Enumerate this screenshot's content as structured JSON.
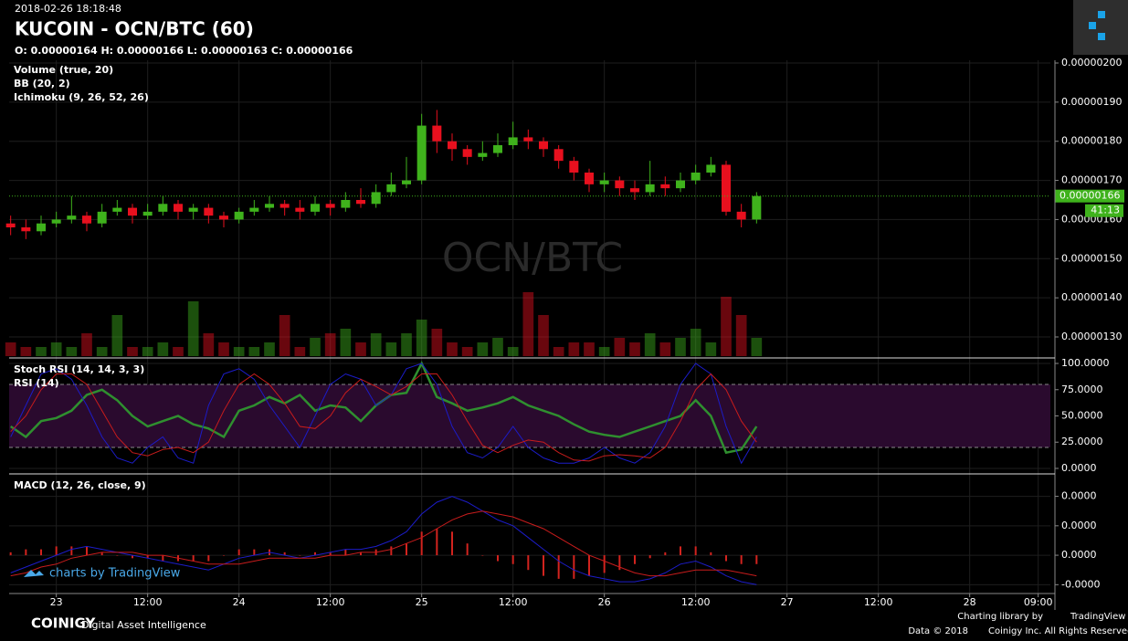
{
  "chart_data": [
    {
      "type": "candlestick",
      "timestamp": "2018-02-26 18:18:48",
      "title": "KUCOIN - OCN/BTC (60)",
      "ohlc_label": "O: 0.00000164 H: 0.00000166 L: 0.00000163 C: 0.00000166",
      "indicators": [
        "Volume (true, 20)",
        "BB (20, 2)",
        "Ichimoku (9, 26, 52, 26)"
      ],
      "watermark": "OCN/BTC",
      "up_color": "#3fb21c",
      "down_color": "#e8101e",
      "x": [
        -6,
        -4,
        -2,
        0,
        2,
        4,
        6,
        8,
        10,
        12,
        14,
        16,
        18,
        20,
        22,
        24,
        26,
        28,
        30,
        32,
        34,
        36,
        38,
        40,
        42,
        44,
        46,
        48,
        50,
        52,
        54,
        56,
        58,
        60,
        62,
        64,
        66,
        68,
        70,
        72,
        74,
        76,
        78,
        80,
        82,
        84,
        86,
        88,
        90,
        92
      ],
      "open": [
        1.59e-06,
        1.58e-06,
        1.57e-06,
        1.59e-06,
        1.6e-06,
        1.61e-06,
        1.59e-06,
        1.62e-06,
        1.63e-06,
        1.61e-06,
        1.62e-06,
        1.64e-06,
        1.62e-06,
        1.63e-06,
        1.61e-06,
        1.6e-06,
        1.62e-06,
        1.63e-06,
        1.64e-06,
        1.63e-06,
        1.62e-06,
        1.64e-06,
        1.63e-06,
        1.65e-06,
        1.64e-06,
        1.67e-06,
        1.69e-06,
        1.7e-06,
        1.84e-06,
        1.8e-06,
        1.78e-06,
        1.76e-06,
        1.77e-06,
        1.79e-06,
        1.81e-06,
        1.8e-06,
        1.78e-06,
        1.75e-06,
        1.72e-06,
        1.69e-06,
        1.7e-06,
        1.68e-06,
        1.67e-06,
        1.69e-06,
        1.68e-06,
        1.7e-06,
        1.72e-06,
        1.74e-06,
        1.62e-06,
        1.6e-06
      ],
      "high": [
        1.61e-06,
        1.6e-06,
        1.61e-06,
        1.62e-06,
        1.66e-06,
        1.62e-06,
        1.64e-06,
        1.65e-06,
        1.64e-06,
        1.64e-06,
        1.66e-06,
        1.65e-06,
        1.64e-06,
        1.64e-06,
        1.62e-06,
        1.63e-06,
        1.65e-06,
        1.66e-06,
        1.65e-06,
        1.65e-06,
        1.66e-06,
        1.65e-06,
        1.67e-06,
        1.68e-06,
        1.69e-06,
        1.72e-06,
        1.76e-06,
        1.87e-06,
        1.88e-06,
        1.82e-06,
        1.79e-06,
        1.8e-06,
        1.82e-06,
        1.85e-06,
        1.83e-06,
        1.81e-06,
        1.79e-06,
        1.76e-06,
        1.73e-06,
        1.72e-06,
        1.71e-06,
        1.7e-06,
        1.75e-06,
        1.71e-06,
        1.72e-06,
        1.74e-06,
        1.76e-06,
        1.75e-06,
        1.64e-06,
        1.67e-06
      ],
      "low": [
        1.56e-06,
        1.55e-06,
        1.56e-06,
        1.58e-06,
        1.59e-06,
        1.57e-06,
        1.58e-06,
        1.61e-06,
        1.59e-06,
        1.6e-06,
        1.61e-06,
        1.6e-06,
        1.6e-06,
        1.59e-06,
        1.58e-06,
        1.59e-06,
        1.61e-06,
        1.62e-06,
        1.61e-06,
        1.6e-06,
        1.61e-06,
        1.61e-06,
        1.62e-06,
        1.63e-06,
        1.63e-06,
        1.66e-06,
        1.68e-06,
        1.69e-06,
        1.77e-06,
        1.75e-06,
        1.74e-06,
        1.75e-06,
        1.76e-06,
        1.78e-06,
        1.78e-06,
        1.76e-06,
        1.73e-06,
        1.7e-06,
        1.67e-06,
        1.67e-06,
        1.66e-06,
        1.65e-06,
        1.66e-06,
        1.66e-06,
        1.67e-06,
        1.69e-06,
        1.71e-06,
        1.61e-06,
        1.58e-06,
        1.59e-06
      ],
      "close": [
        1.58e-06,
        1.57e-06,
        1.59e-06,
        1.6e-06,
        1.61e-06,
        1.59e-06,
        1.62e-06,
        1.63e-06,
        1.61e-06,
        1.62e-06,
        1.64e-06,
        1.62e-06,
        1.63e-06,
        1.61e-06,
        1.6e-06,
        1.62e-06,
        1.63e-06,
        1.64e-06,
        1.63e-06,
        1.62e-06,
        1.64e-06,
        1.63e-06,
        1.65e-06,
        1.64e-06,
        1.67e-06,
        1.69e-06,
        1.7e-06,
        1.84e-06,
        1.8e-06,
        1.78e-06,
        1.76e-06,
        1.77e-06,
        1.79e-06,
        1.81e-06,
        1.8e-06,
        1.78e-06,
        1.75e-06,
        1.72e-06,
        1.69e-06,
        1.7e-06,
        1.68e-06,
        1.67e-06,
        1.69e-06,
        1.68e-06,
        1.7e-06,
        1.72e-06,
        1.74e-06,
        1.62e-06,
        1.6e-06,
        1.66e-06
      ],
      "volume": [
        3,
        2,
        2,
        3,
        2,
        5,
        2,
        9,
        2,
        2,
        3,
        2,
        12,
        5,
        3,
        2,
        2,
        3,
        9,
        2,
        4,
        5,
        6,
        3,
        5,
        3,
        5,
        8,
        6,
        3,
        2,
        3,
        4,
        2,
        14,
        9,
        2,
        3,
        3,
        2,
        4,
        3,
        5,
        3,
        4,
        6,
        3,
        13,
        9,
        4
      ],
      "xlim": [
        -6.2,
        130.6
      ],
      "xticks": [
        {
          "value": 0,
          "label": "23"
        },
        {
          "value": 12,
          "label": "12:00"
        },
        {
          "value": 24,
          "label": "24"
        },
        {
          "value": 36,
          "label": "12:00"
        },
        {
          "value": 48,
          "label": "25"
        },
        {
          "value": 60,
          "label": "12:00"
        },
        {
          "value": 72,
          "label": "26"
        },
        {
          "value": 84,
          "label": "12:00"
        },
        {
          "value": 96,
          "label": "27"
        },
        {
          "value": 108,
          "label": "12:00"
        },
        {
          "value": 120,
          "label": "28"
        },
        {
          "value": 129,
          "label": "09:00"
        }
      ],
      "ylim": [
        1.251e-06,
        2.007e-06
      ],
      "yticks": [
        {
          "value": 2e-06,
          "label": "0.00000200"
        },
        {
          "value": 1.9e-06,
          "label": "0.00000190"
        },
        {
          "value": 1.8e-06,
          "label": "0.00000180"
        },
        {
          "value": 1.7e-06,
          "label": "0.00000170"
        },
        {
          "value": 1.6e-06,
          "label": "0.00000160"
        },
        {
          "value": 1.5e-06,
          "label": "0.00000150"
        },
        {
          "value": 1.4e-06,
          "label": "0.00000140"
        },
        {
          "value": 1.3e-06,
          "label": "0.00000130"
        }
      ],
      "last_price": {
        "value": 1.66e-06,
        "label": "0.00000166"
      },
      "countdown": "41:13",
      "grid": true
    },
    {
      "type": "line",
      "indicators": [
        "Stoch RSI (14, 14, 3, 3)",
        "RSI (14)"
      ],
      "series": [
        {
          "color": "#2f8f2f",
          "values": [
            40,
            30,
            45,
            48,
            55,
            70,
            75,
            65,
            50,
            40,
            45,
            50,
            42,
            38,
            30,
            55,
            60,
            68,
            62,
            70,
            55,
            60,
            58,
            45,
            60,
            70,
            72,
            100,
            68,
            62,
            55,
            58,
            62,
            68,
            60,
            55,
            50,
            42,
            35,
            32,
            30,
            35,
            40,
            45,
            50,
            65,
            50,
            15,
            18,
            40
          ]
        },
        {
          "color": "#1c1cc8",
          "values": [
            30,
            60,
            90,
            95,
            85,
            60,
            30,
            10,
            5,
            20,
            30,
            10,
            5,
            60,
            90,
            95,
            85,
            60,
            40,
            20,
            50,
            80,
            90,
            85,
            60,
            70,
            95,
            100,
            80,
            40,
            15,
            10,
            20,
            40,
            20,
            10,
            5,
            5,
            10,
            20,
            10,
            5,
            15,
            40,
            80,
            100,
            90,
            40,
            5,
            30
          ]
        },
        {
          "color": "#c81c1c",
          "values": [
            35,
            50,
            75,
            90,
            90,
            80,
            55,
            30,
            15,
            12,
            18,
            20,
            15,
            25,
            55,
            80,
            90,
            80,
            62,
            40,
            38,
            50,
            72,
            85,
            78,
            70,
            78,
            90,
            90,
            70,
            45,
            22,
            15,
            22,
            27,
            25,
            15,
            8,
            7,
            12,
            13,
            12,
            10,
            20,
            45,
            75,
            90,
            75,
            45,
            25
          ]
        }
      ],
      "bands": [
        20,
        80
      ],
      "ylim": [
        -3.5,
        103.5
      ],
      "yticks": [
        {
          "value": 100,
          "label": "100.0000"
        },
        {
          "value": 75,
          "label": "75.0000"
        },
        {
          "value": 50,
          "label": "50.0000"
        },
        {
          "value": 25,
          "label": "25.0000"
        },
        {
          "value": 0,
          "label": "0.0000"
        }
      ],
      "grid": true
    },
    {
      "type": "macd",
      "indicators": [
        "MACD (12, 26, close, 9)"
      ],
      "series": [
        {
          "color": "#1c1cc8",
          "values": [
            -6e-09,
            -4e-09,
            -2e-09,
            0,
            2e-09,
            3e-09,
            2e-09,
            1e-09,
            0,
            -1e-09,
            -2e-09,
            -3e-09,
            -4e-09,
            -5e-09,
            -3e-09,
            -1e-09,
            0,
            1e-09,
            0,
            -1e-09,
            0,
            1e-09,
            2e-09,
            2e-09,
            3e-09,
            5e-09,
            8e-09,
            1.4e-08,
            1.8e-08,
            2e-08,
            1.8e-08,
            1.5e-08,
            1.2e-08,
            1e-08,
            6e-09,
            2e-09,
            -2e-09,
            -5e-09,
            -7e-09,
            -8e-09,
            -9e-09,
            -9e-09,
            -8e-09,
            -6e-09,
            -3e-09,
            -2e-09,
            -4e-09,
            -7e-09,
            -9e-09,
            -1e-08
          ]
        },
        {
          "color": "#c81c1c",
          "values": [
            -7e-09,
            -6e-09,
            -4e-09,
            -3e-09,
            -1e-09,
            0,
            1e-09,
            1e-09,
            1e-09,
            0,
            0,
            -1e-09,
            -2e-09,
            -3e-09,
            -3e-09,
            -3e-09,
            -2e-09,
            -1e-09,
            -1e-09,
            -1e-09,
            -1e-09,
            0,
            0,
            1e-09,
            1e-09,
            2e-09,
            4e-09,
            6e-09,
            9e-09,
            1.2e-08,
            1.4e-08,
            1.5e-08,
            1.4e-08,
            1.3e-08,
            1.1e-08,
            9e-09,
            6e-09,
            3e-09,
            0,
            -2e-09,
            -4e-09,
            -6e-09,
            -7e-09,
            -7e-09,
            -6e-09,
            -5e-09,
            -5e-09,
            -5e-09,
            -6e-09,
            -7e-09
          ]
        }
      ],
      "histogram": {
        "color": "#d2231e",
        "values": [
          1e-09,
          2e-09,
          2e-09,
          3e-09,
          3e-09,
          3e-09,
          1e-09,
          0,
          -1e-09,
          -1e-09,
          -2e-09,
          -2e-09,
          -2e-09,
          -2e-09,
          0,
          2e-09,
          2e-09,
          2e-09,
          1e-09,
          0,
          1e-09,
          1e-09,
          2e-09,
          1e-09,
          2e-09,
          3e-09,
          4e-09,
          8e-09,
          9e-09,
          8e-09,
          4e-09,
          0,
          -2e-09,
          -3e-09,
          -5e-09,
          -7e-09,
          -8e-09,
          -8e-09,
          -7e-09,
          -6e-09,
          -5e-09,
          -3e-09,
          -1e-09,
          1e-09,
          3e-09,
          3e-09,
          1e-09,
          -2e-09,
          -3e-09,
          -3e-09
        ]
      },
      "ylim": [
        -1.3e-08,
        2.7e-08
      ],
      "yticks": [
        {
          "value": 2e-08,
          "label": "0.0000"
        },
        {
          "value": 1e-08,
          "label": "0.0000"
        },
        {
          "value": 0,
          "label": "0.0000"
        },
        {
          "value": -1e-08,
          "label": "-0.0000"
        }
      ],
      "grid": true
    }
  ],
  "branding": {
    "tradingview": "charts by TradingView",
    "logo": "COINIGY",
    "tagline": "Digital Asset Intelligence",
    "charting": "Charting library by",
    "charting_brand": "TradingView",
    "data": "Data © 2018",
    "rights": "Coinigy Inc. All Rights Reserved."
  }
}
